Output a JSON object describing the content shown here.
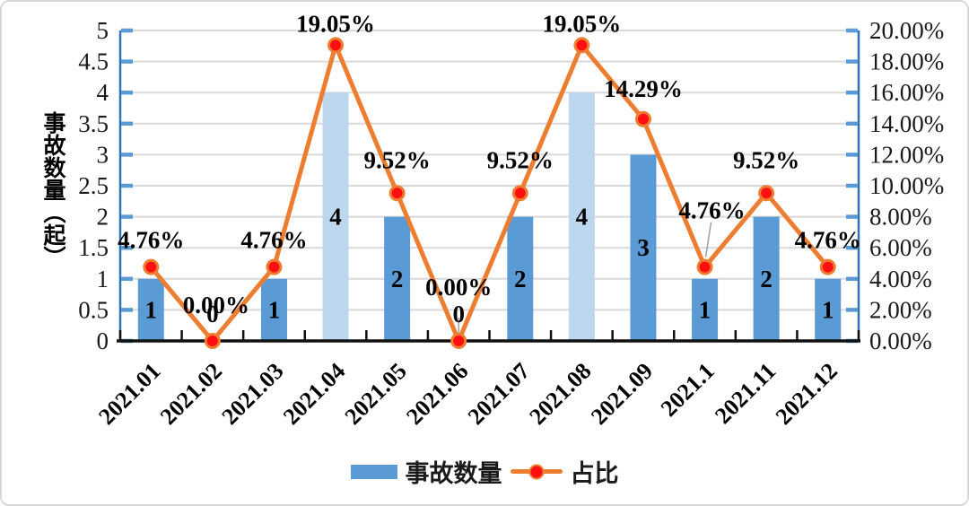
{
  "chart_data": {
    "type": "combo-bar-line",
    "title": "",
    "ylabel_left": "事故数量（起）",
    "categories": [
      "2021.01",
      "2021.02",
      "2021.03",
      "2021.04",
      "2021.05",
      "2021.06",
      "2021.07",
      "2021.08",
      "2021.09",
      "2021.1",
      "2021.11",
      "2021.12"
    ],
    "series": [
      {
        "name": "事故数量",
        "type": "bar",
        "values": [
          1,
          0,
          1,
          4,
          2,
          0,
          2,
          4,
          3,
          1,
          2,
          1
        ],
        "bar_value_labels": [
          "1",
          "0",
          "1",
          "4",
          "2",
          "0",
          "2",
          "4",
          "3",
          "1",
          "2",
          "1"
        ],
        "light_bar_indices": [
          3,
          7
        ]
      },
      {
        "name": "占比",
        "type": "line",
        "values_percent": [
          4.76,
          0,
          4.76,
          19.05,
          9.52,
          0,
          9.52,
          19.05,
          14.29,
          4.76,
          9.52,
          4.76
        ],
        "point_labels": [
          "4.76%",
          "0.00%",
          "4.76%",
          "19.05%",
          "9.52%",
          "0.00%",
          "9.52%",
          "19.05%",
          "14.29%",
          "4.76%",
          "9.52%",
          "4.76%"
        ]
      }
    ],
    "axis_left": {
      "ticks": [
        "0",
        "0.5",
        "1",
        "1.5",
        "2",
        "2.5",
        "3",
        "3.5",
        "4",
        "4.5",
        "5"
      ],
      "range": [
        0,
        5
      ]
    },
    "axis_right": {
      "ticks": [
        "0.00%",
        "2.00%",
        "4.00%",
        "6.00%",
        "8.00%",
        "10.00%",
        "12.00%",
        "14.00%",
        "16.00%",
        "18.00%",
        "20.00%"
      ],
      "range_percent": [
        0,
        20
      ]
    },
    "layout_hints": {
      "grid": true,
      "legend_position": "bottom-center",
      "point_label_dy": [
        21,
        31,
        21,
        15,
        28,
        51,
        28,
        15,
        25,
        54,
        28,
        21
      ],
      "point_label_dx": [
        0,
        4,
        0,
        0,
        0,
        0,
        0,
        0,
        0,
        8,
        0,
        0
      ],
      "leader_lines": {
        "5": {
          "dx1": 0,
          "dy1": -26,
          "dx2": 0,
          "dy2": -6
        },
        "9": {
          "dx1": 7,
          "dy1": -50,
          "dx2": 1,
          "dy2": -11
        }
      }
    }
  },
  "colors": {
    "bar_fill": "#5B9BD5",
    "bar_fill_light": "#BDD7EE",
    "line": "#ED7D31",
    "marker_fill": "#FF0F0F",
    "axis_line_blue": "#2E75B6",
    "axis_tick_blue": "#5B9BD5",
    "gridline": "#D9D9D9",
    "x_axis_black": "#111111",
    "label_text": "#000000",
    "tick_label_text": "#1a1a1a",
    "leader_gray": "#A0A0A0"
  }
}
